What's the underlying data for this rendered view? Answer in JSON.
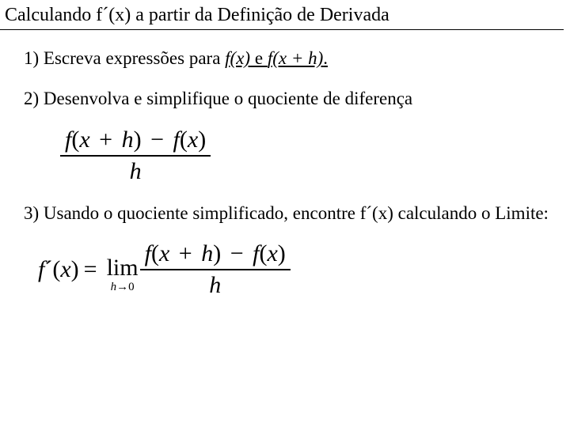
{
  "title": "Calculando f´(x) a partir da Definição de Derivada",
  "steps": {
    "s1_prefix": "1) Escreva expressões para ",
    "s1_fx": "f(x)",
    "s1_mid": " e ",
    "s1_fxh": "f(x + h)",
    "s1_dot": ".",
    "s2": "2) Desenvolva e simplifique o quociente de diferença",
    "s3": "3) Usando o quociente simplificado, encontre f´(x) calculando o Limite:"
  },
  "formula1": {
    "num_a": "f",
    "num_b": "(",
    "num_c": "x",
    "num_d": " + ",
    "num_e": "h",
    "num_f": ")",
    "num_g": " − ",
    "num_h": "f",
    "num_i": "(",
    "num_j": "x",
    "num_k": ")",
    "den": "h"
  },
  "formula2": {
    "lhs_a": "f",
    "lhs_b": "´(",
    "lhs_c": "x",
    "lhs_d": ")",
    "eq": "=",
    "lim": "lim",
    "lim_sub_a": "h",
    "lim_sub_arrow": "→",
    "lim_sub_b": "0",
    "num_a": "f",
    "num_b": "(",
    "num_c": "x",
    "num_d": " + ",
    "num_e": "h",
    "num_f": ")",
    "num_g": " − ",
    "num_h": "f",
    "num_i": "(",
    "num_j": "x",
    "num_k": ")",
    "den": "h"
  },
  "style": {
    "text_color": "#000000",
    "background_color": "#ffffff",
    "title_fontsize": 24,
    "step_fontsize": 23,
    "math_fontsize": 30,
    "limsub_fontsize": 15
  }
}
